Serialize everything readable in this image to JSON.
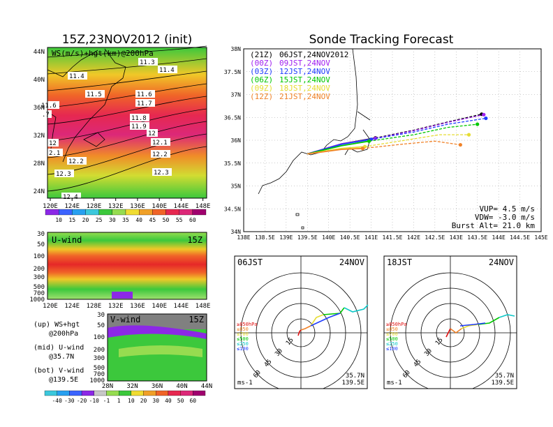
{
  "left_title": "15Z,23NOV2012 (init)",
  "right_title": "Sonde Tracking Forecast",
  "chart_data": [
    {
      "type": "heatmap",
      "id": "upper",
      "title": "WS(m/s)+hgt(km)@200hPa",
      "x_ticks": [
        "120E",
        "124E",
        "128E",
        "132E",
        "136E",
        "140E",
        "144E",
        "148E"
      ],
      "y_ticks": [
        "24N",
        "28N",
        "32N",
        "36N",
        "40N",
        "44N"
      ],
      "contour_labels": [
        "11.3",
        "11.4",
        "11.4",
        "11.5",
        "11.6",
        "11.6",
        "11.7",
        ".7",
        "11.8",
        "11.9",
        "12",
        "12",
        "12.1",
        "2.1",
        "12.2",
        "12.2",
        "12.3",
        "12.3",
        "12.4"
      ],
      "colorbar_ticks": [
        "10",
        "15",
        "20",
        "25",
        "30",
        "35",
        "40",
        "45",
        "50",
        "55",
        "60"
      ]
    },
    {
      "type": "heatmap",
      "id": "uwind",
      "title": "U-wind",
      "time": "15Z",
      "x_ticks": [
        "120E",
        "124E",
        "128E",
        "132E",
        "136E",
        "140E",
        "144E",
        "148E"
      ],
      "y_ticks": [
        "30",
        "50",
        "100",
        "200",
        "300",
        "500",
        "700",
        "1000"
      ]
    },
    {
      "type": "heatmap",
      "id": "vwind",
      "title": "V-wind",
      "time": "15Z",
      "x_ticks": [
        "28N",
        "32N",
        "36N",
        "40N",
        "44N"
      ],
      "y_ticks": [
        "30",
        "50",
        "100",
        "200",
        "300",
        "500",
        "700",
        "1000"
      ],
      "colorbar_ticks": [
        "-40",
        "-30",
        "-20",
        "-10",
        "-1",
        "1",
        "10",
        "20",
        "30",
        "40",
        "50",
        "60"
      ]
    },
    {
      "type": "line",
      "id": "tracking",
      "x_ticks": [
        "138E",
        "138.5E",
        "139E",
        "139.5E",
        "140E",
        "140.5E",
        "141E",
        "141.5E",
        "142E",
        "142.5E",
        "143E",
        "143.5E",
        "144E",
        "144.5E",
        "145E"
      ],
      "y_ticks": [
        "34N",
        "34.5N",
        "35N",
        "35.5N",
        "36N",
        "36.5N",
        "37N",
        "37.5N",
        "38N"
      ],
      "xlim": [
        138,
        145
      ],
      "ylim": [
        34,
        38
      ],
      "legend": [
        {
          "tag": "(21Z)",
          "label": "06JST,24NOV2012",
          "color": "#000000"
        },
        {
          "tag": "(00Z)",
          "label": "09JST,24NOV",
          "color": "#a020f0"
        },
        {
          "tag": "(03Z)",
          "label": "12JST,24NOV",
          "color": "#1e3cff"
        },
        {
          "tag": "(06Z)",
          "label": "15JST,24NOV",
          "color": "#00c800"
        },
        {
          "tag": "(09Z)",
          "label": "18JST,24NOV",
          "color": "#e6dc32"
        },
        {
          "tag": "(12Z)",
          "label": "21JST,24NOV",
          "color": "#f08228"
        }
      ],
      "series": [
        {
          "color": "#000000",
          "points": [
            [
              139.5,
              35.7
            ],
            [
              140.3,
              35.92
            ],
            [
              141.1,
              36.05
            ],
            [
              142.0,
              36.22
            ],
            [
              142.8,
              36.4
            ],
            [
              143.6,
              36.57
            ]
          ]
        },
        {
          "color": "#a020f0",
          "points": [
            [
              139.5,
              35.7
            ],
            [
              140.3,
              35.92
            ],
            [
              141.1,
              36.04
            ],
            [
              142.0,
              36.21
            ],
            [
              142.8,
              36.39
            ],
            [
              143.65,
              36.56
            ]
          ]
        },
        {
          "color": "#1e3cff",
          "points": [
            [
              139.5,
              35.7
            ],
            [
              140.3,
              35.91
            ],
            [
              141.0,
              36.02
            ],
            [
              142.0,
              36.18
            ],
            [
              142.8,
              36.35
            ],
            [
              143.7,
              36.48
            ]
          ]
        },
        {
          "color": "#00c800",
          "points": [
            [
              139.5,
              35.7
            ],
            [
              140.3,
              35.88
            ],
            [
              140.95,
              35.98
            ],
            [
              142.0,
              36.12
            ],
            [
              142.8,
              36.28
            ],
            [
              143.5,
              36.35
            ]
          ]
        },
        {
          "color": "#e6dc32",
          "points": [
            [
              139.5,
              35.7
            ],
            [
              140.3,
              35.82
            ],
            [
              140.85,
              35.86
            ],
            [
              141.8,
              36.0
            ],
            [
              142.6,
              36.12
            ],
            [
              143.3,
              36.12
            ]
          ]
        },
        {
          "color": "#f08228",
          "points": [
            [
              139.5,
              35.7
            ],
            [
              140.3,
              35.8
            ],
            [
              140.8,
              35.82
            ],
            [
              141.8,
              35.92
            ],
            [
              142.5,
              35.98
            ],
            [
              143.1,
              35.9
            ]
          ]
        }
      ],
      "annotations": [
        "VUP= 4.5 m/s",
        "VDW= -3.0 m/s",
        "Burst Alt= 21.0 km"
      ]
    },
    {
      "type": "line",
      "id": "hodo06",
      "time_label": "06JST",
      "date_label": "24NOV",
      "ring_labels": [
        "15",
        "30",
        "45",
        "60"
      ],
      "levels": [
        {
          "label": "≥850hPa",
          "color": "#e01010"
        },
        {
          "label": "≤850",
          "color": "#f08228"
        },
        {
          "label": "≤700",
          "color": "#e6dc32"
        },
        {
          "label": "≤500",
          "color": "#00c800"
        },
        {
          "label": "≤250",
          "color": "#10c8c8"
        },
        {
          "label": "≤100",
          "color": "#1e3cff"
        }
      ],
      "unit": "ms-1",
      "lat_label": "35.7N",
      "lon_label": "139.5E"
    },
    {
      "type": "line",
      "id": "hodo18",
      "time_label": "18JST",
      "date_label": "24NOV",
      "ring_labels": [
        "15",
        "30",
        "45",
        "60"
      ],
      "levels": [
        {
          "label": "≥850hPa",
          "color": "#e01010"
        },
        {
          "label": "≤850",
          "color": "#f08228"
        },
        {
          "label": "≤700",
          "color": "#e6dc32"
        },
        {
          "label": "≤500",
          "color": "#00c800"
        },
        {
          "label": "≤250",
          "color": "#10c8c8"
        },
        {
          "label": "≤100",
          "color": "#1e3cff"
        }
      ],
      "unit": "ms-1",
      "lat_label": "35.7N",
      "lon_label": "139.5E"
    }
  ],
  "legend_notes": [
    {
      "head": "(up) WS+hgt",
      "sub": "@200hPa"
    },
    {
      "head": "(mid) U-wind",
      "sub": "@35.7N"
    },
    {
      "head": "(bot) V-wind",
      "sub": "@139.5E"
    }
  ]
}
